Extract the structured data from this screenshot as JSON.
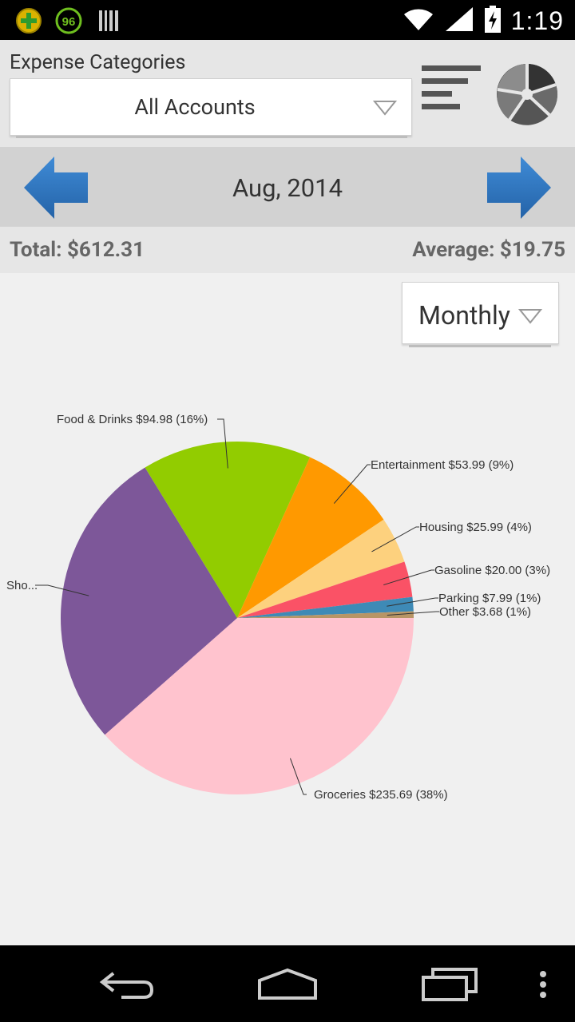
{
  "status_bar": {
    "clock": "1:19",
    "notif_badge": "96",
    "icons": [
      "plus-circle-icon",
      "progress-96-icon",
      "barcode-icon",
      "wifi-icon",
      "signal-icon",
      "battery-charging-icon"
    ]
  },
  "header": {
    "title": "Expense Categories",
    "account": "All Accounts",
    "list_view_icon": "bar-list-icon",
    "pie_view_icon": "pie-chart-icon"
  },
  "month_nav": {
    "month": "Aug, 2014",
    "prev_icon": "arrow-left-icon",
    "next_icon": "arrow-right-icon"
  },
  "totals": {
    "total": "Total: $612.31",
    "average": "Average: $19.75"
  },
  "period": {
    "selected": "Monthly"
  },
  "colors": {
    "accent_blue": "#2f79c0",
    "header_bg": "#e6e6e6",
    "nav_bg": "#d2d2d2"
  },
  "chart_data": {
    "type": "pie",
    "total": 612.31,
    "slices": [
      {
        "label": "Groceries $235.69 (38%)",
        "display": "Groceries  $235.69 (38%)",
        "value": 235.69,
        "color": "#ffc3ce"
      },
      {
        "label": "Sho...",
        "display": "Sho...",
        "value": 170.0,
        "color": "#7d5799"
      },
      {
        "label": "Food & Drinks $94.98 (16%)",
        "display": "Food & Drinks  $94.98 (16%)",
        "value": 94.98,
        "color": "#92cc00"
      },
      {
        "label": "Entertainment $53.99 (9%)",
        "display": "Entertainment  $53.99 (9%)",
        "value": 53.99,
        "color": "#ff9900"
      },
      {
        "label": "Housing $25.99 (4%)",
        "display": "Housing  $25.99 (4%)",
        "value": 25.99,
        "color": "#fdd17e"
      },
      {
        "label": "Gasoline $20.00 (3%)",
        "display": "Gasoline  $20.00 (3%)",
        "value": 20.0,
        "color": "#fa5266"
      },
      {
        "label": "Parking $7.99 (1%)",
        "display": "Parking  $7.99 (1%)",
        "value": 7.99,
        "color": "#3e8ab6"
      },
      {
        "label": "Other $3.68 (1%)",
        "display": "Other  $3.68 (1%)",
        "value": 3.68,
        "color": "#b89565"
      }
    ]
  },
  "nav_bar": {
    "buttons": [
      "back-icon",
      "home-icon",
      "recent-apps-icon",
      "menu-icon"
    ]
  }
}
